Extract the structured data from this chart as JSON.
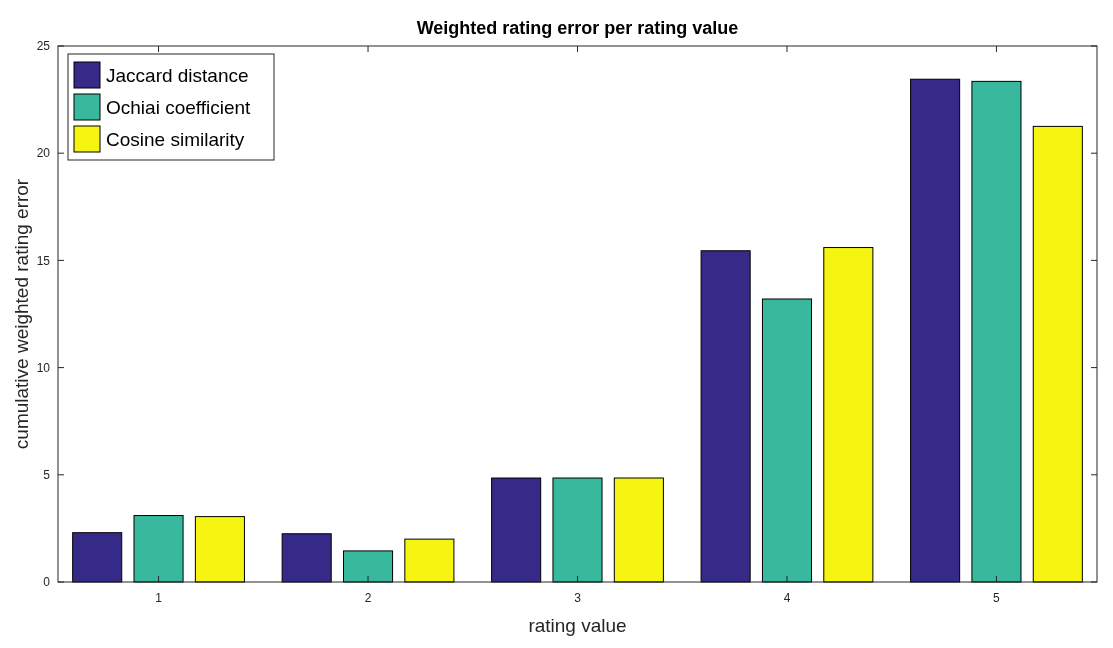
{
  "chart_data": {
    "type": "bar",
    "title": "Weighted rating error per rating value",
    "xlabel": "rating value",
    "ylabel": "cumulative weighted rating error",
    "categories": [
      "1",
      "2",
      "3",
      "4",
      "5"
    ],
    "series": [
      {
        "name": "Jaccard distance",
        "color": "#352a87",
        "values": [
          2.3,
          2.25,
          4.85,
          15.45,
          23.45
        ]
      },
      {
        "name": "Ochiai coefficient",
        "color": "#38b99e",
        "values": [
          3.1,
          1.45,
          4.85,
          13.2,
          23.35
        ]
      },
      {
        "name": "Cosine similarity",
        "color": "#f5f511",
        "values": [
          3.05,
          2.0,
          4.85,
          15.6,
          21.25
        ]
      }
    ],
    "ylim": [
      0,
      25
    ],
    "yticks": [
      0,
      5,
      10,
      15,
      20,
      25
    ],
    "grid": false,
    "legend": "top left"
  }
}
